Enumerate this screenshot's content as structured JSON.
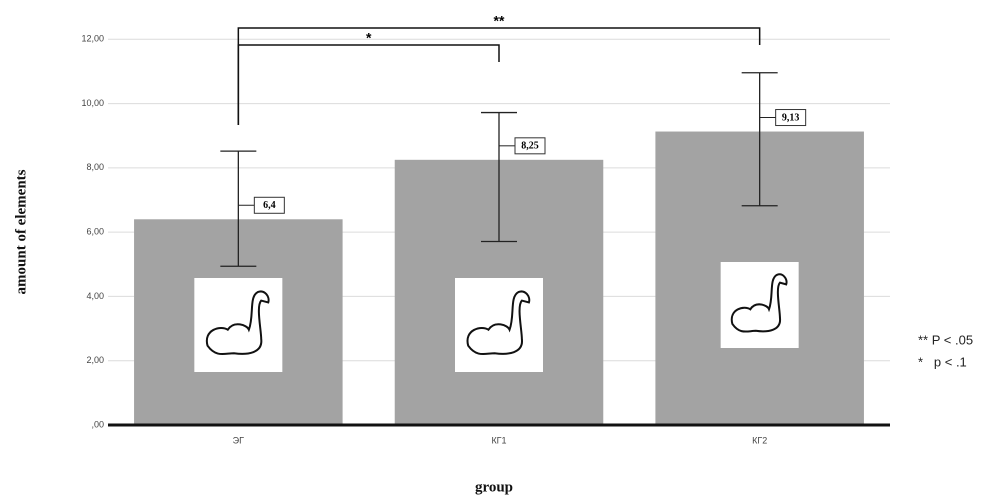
{
  "chart_data": {
    "type": "bar",
    "categories": [
      "ЭГ",
      "КГ1",
      "КГ2"
    ],
    "values": [
      6.4,
      8.25,
      9.13
    ],
    "value_labels": [
      "6,4",
      "8,25",
      "9,13"
    ],
    "errors_low": [
      4.94,
      5.71,
      6.82
    ],
    "errors_high": [
      8.52,
      9.72,
      10.96
    ],
    "color": "#a3a3a3",
    "ylim": [
      0,
      12.6
    ],
    "yticks": [
      {
        "value": 0,
        "label": ",00"
      },
      {
        "value": 2,
        "label": "2,00"
      },
      {
        "value": 4,
        "label": "4,00"
      },
      {
        "value": 6,
        "label": "6,00"
      },
      {
        "value": 8,
        "label": "8,00"
      },
      {
        "value": 10,
        "label": "10,00"
      },
      {
        "value": 12,
        "label": "12,00"
      }
    ],
    "grid": true,
    "y_label": "amount of elements",
    "x_label": "group",
    "brackets": [
      {
        "label": "*"
      },
      {
        "label": "**"
      }
    ],
    "notes": [
      "** P < .05",
      "*   p < .1"
    ]
  }
}
